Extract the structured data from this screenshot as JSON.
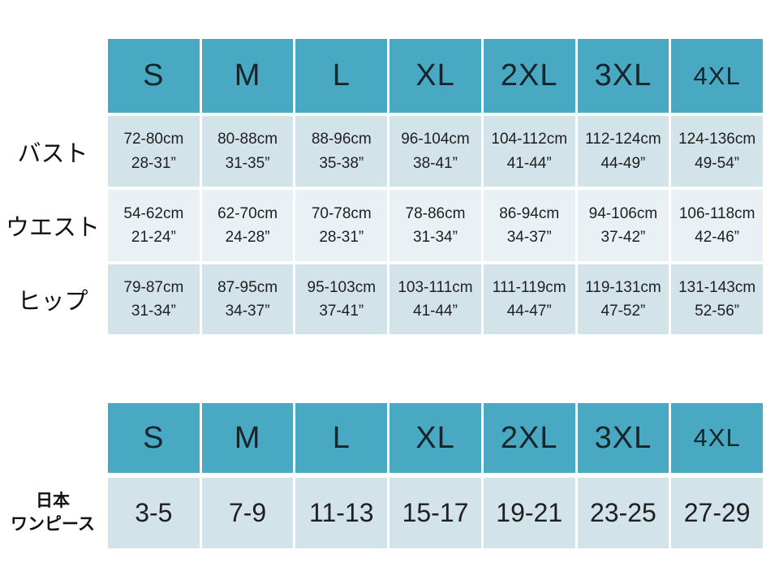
{
  "slide": {
    "background": "#ffffff"
  },
  "colors": {
    "header_bg": "#4AA9C2",
    "band_a": "#D3E3EA",
    "band_b": "#E9F1F5",
    "text": "#1f1f1f"
  },
  "measurement_table": {
    "column_headers": [
      "S",
      "M",
      "L",
      "XL",
      "2XL",
      "3XL",
      "4XL"
    ],
    "rows": [
      {
        "label": "バスト",
        "cells": [
          {
            "cm": "72-80cm",
            "inch": "28-31”"
          },
          {
            "cm": "80-88cm",
            "inch": "31-35”"
          },
          {
            "cm": "88-96cm",
            "inch": "35-38”"
          },
          {
            "cm": "96-104cm",
            "inch": "38-41”"
          },
          {
            "cm": "104-112cm",
            "inch": "41-44”"
          },
          {
            "cm": "112-124cm",
            "inch": "44-49”"
          },
          {
            "cm": "124-136cm",
            "inch": "49-54”"
          }
        ]
      },
      {
        "label": "ウエスト",
        "cells": [
          {
            "cm": "54-62cm",
            "inch": "21-24”"
          },
          {
            "cm": "62-70cm",
            "inch": "24-28”"
          },
          {
            "cm": "70-78cm",
            "inch": "28-31”"
          },
          {
            "cm": "78-86cm",
            "inch": "31-34”"
          },
          {
            "cm": "86-94cm",
            "inch": "34-37”"
          },
          {
            "cm": "94-106cm",
            "inch": "37-42”"
          },
          {
            "cm": "106-118cm",
            "inch": "42-46”"
          }
        ]
      },
      {
        "label": "ヒップ",
        "cells": [
          {
            "cm": "79-87cm",
            "inch": "31-34”"
          },
          {
            "cm": "87-95cm",
            "inch": "34-37”"
          },
          {
            "cm": "95-103cm",
            "inch": "37-41”"
          },
          {
            "cm": "103-111cm",
            "inch": "41-44”"
          },
          {
            "cm": "111-119cm",
            "inch": "44-47”"
          },
          {
            "cm": "119-131cm",
            "inch": "47-52”"
          },
          {
            "cm": "131-143cm",
            "inch": "52-56”"
          }
        ]
      }
    ]
  },
  "japan_size_table": {
    "column_headers": [
      "S",
      "M",
      "L",
      "XL",
      "2XL",
      "3XL",
      "4XL"
    ],
    "row_label": {
      "line1": "日本",
      "line2": "ワンピース"
    },
    "values": [
      "3-5",
      "7-9",
      "11-13",
      "15-17",
      "19-21",
      "23-25",
      "27-29"
    ]
  }
}
